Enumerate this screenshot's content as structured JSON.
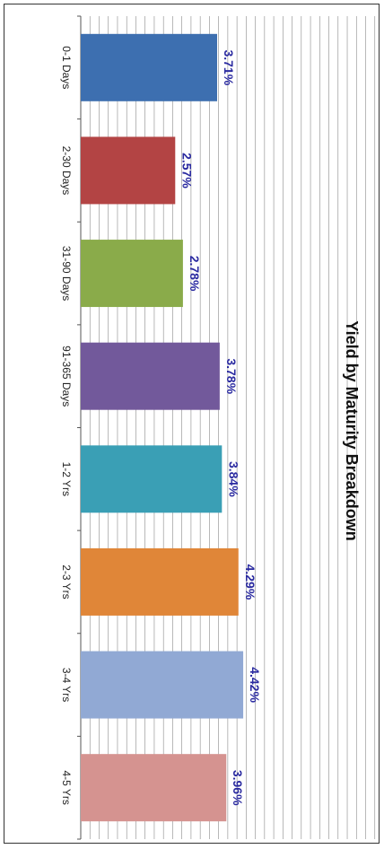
{
  "chart_data": {
    "type": "bar",
    "orientation": "rotated-90",
    "title": "Yield by Maturity Breakdown",
    "categories": [
      "0-1 Days",
      "2-30 Days",
      "31-90 Days",
      "91-365 Days",
      "1-2 Yrs",
      "2-3 Yrs",
      "3-4 Yrs",
      "4-5 Yrs"
    ],
    "values": [
      3.71,
      2.57,
      2.78,
      3.78,
      3.84,
      4.29,
      4.42,
      3.96
    ],
    "value_labels": [
      "3.71%",
      "2.57%",
      "2.78%",
      "3.78%",
      "3.84%",
      "4.29%",
      "4.42%",
      "3.96%"
    ],
    "colors": [
      "#3d6fb0",
      "#b34444",
      "#8aab4a",
      "#72599b",
      "#3a9fb5",
      "#e08638",
      "#91a9d4",
      "#d59390"
    ],
    "value_label_color": "#2a2aa0",
    "ylim": [
      0,
      8
    ],
    "grid": true
  }
}
